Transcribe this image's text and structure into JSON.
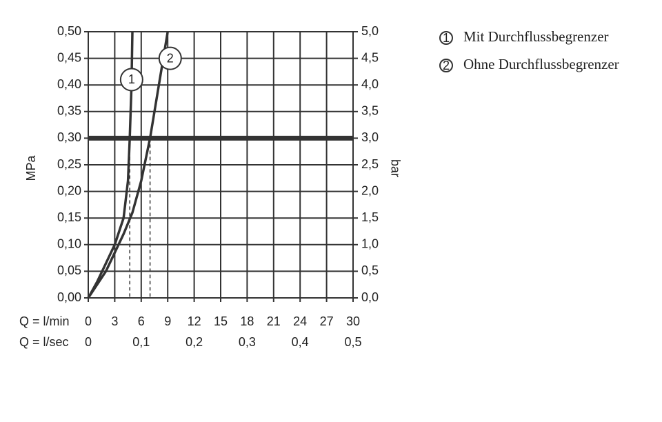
{
  "chart_data": {
    "type": "line",
    "x_label": "Q = l/min",
    "x2_label": "Q = l/sec",
    "y_label": "MPa",
    "y2_label": "bar",
    "xlim": [
      0,
      30
    ],
    "xticks": [
      0,
      3,
      6,
      9,
      12,
      15,
      18,
      21,
      24,
      27,
      30
    ],
    "x2lim": [
      0,
      0.5
    ],
    "x2ticks": [
      0,
      {
        "value": 0.1,
        "label": "0,1"
      },
      {
        "value": 0.2,
        "label": "0,2"
      },
      {
        "value": 0.3,
        "label": "0,3"
      },
      {
        "value": 0.4,
        "label": "0,4"
      },
      {
        "value": 0.5,
        "label": "0,5"
      }
    ],
    "ylim": [
      0,
      0.5
    ],
    "yticks": [
      {
        "value": 0,
        "label": "0,00"
      },
      {
        "value": 0.05,
        "label": "0,05"
      },
      {
        "value": 0.1,
        "label": "0,10"
      },
      {
        "value": 0.15,
        "label": "0,15"
      },
      {
        "value": 0.2,
        "label": "0,20"
      },
      {
        "value": 0.25,
        "label": "0,25"
      },
      {
        "value": 0.3,
        "label": "0,30"
      },
      {
        "value": 0.35,
        "label": "0,35"
      },
      {
        "value": 0.4,
        "label": "0,40"
      },
      {
        "value": 0.45,
        "label": "0,45"
      },
      {
        "value": 0.5,
        "label": "0,50"
      }
    ],
    "y2lim": [
      0,
      5
    ],
    "y2ticks": [
      {
        "value": 0,
        "label": "0,0"
      },
      {
        "value": 0.5,
        "label": "0,5"
      },
      {
        "value": 1,
        "label": "1,0"
      },
      {
        "value": 1.5,
        "label": "1,5"
      },
      {
        "value": 2,
        "label": "2,0"
      },
      {
        "value": 2.5,
        "label": "2,5"
      },
      {
        "value": 3,
        "label": "3,0"
      },
      {
        "value": 3.5,
        "label": "3,5"
      },
      {
        "value": 4,
        "label": "4,0"
      },
      {
        "value": 4.5,
        "label": "4,5"
      },
      {
        "value": 5,
        "label": "5,0"
      }
    ],
    "grid": true,
    "reference_line": {
      "axis": "y",
      "value": 0.3
    },
    "series": [
      {
        "name": "Mit Durchflussbegrenzer",
        "marker": "1",
        "color": "#333333",
        "x": [
          0,
          1,
          2,
          3,
          4,
          4.5,
          4.7,
          4.9,
          5.0
        ],
        "values": [
          0,
          0.03,
          0.065,
          0.1,
          0.15,
          0.22,
          0.3,
          0.4,
          0.5
        ]
      },
      {
        "name": "Ohne Durchflussbegrenzer",
        "marker": "2",
        "color": "#333333",
        "x": [
          0,
          2,
          3,
          4,
          5,
          6,
          7,
          8,
          9
        ],
        "values": [
          0,
          0.05,
          0.085,
          0.12,
          0.16,
          0.22,
          0.3,
          0.4,
          0.5
        ]
      }
    ]
  }
}
